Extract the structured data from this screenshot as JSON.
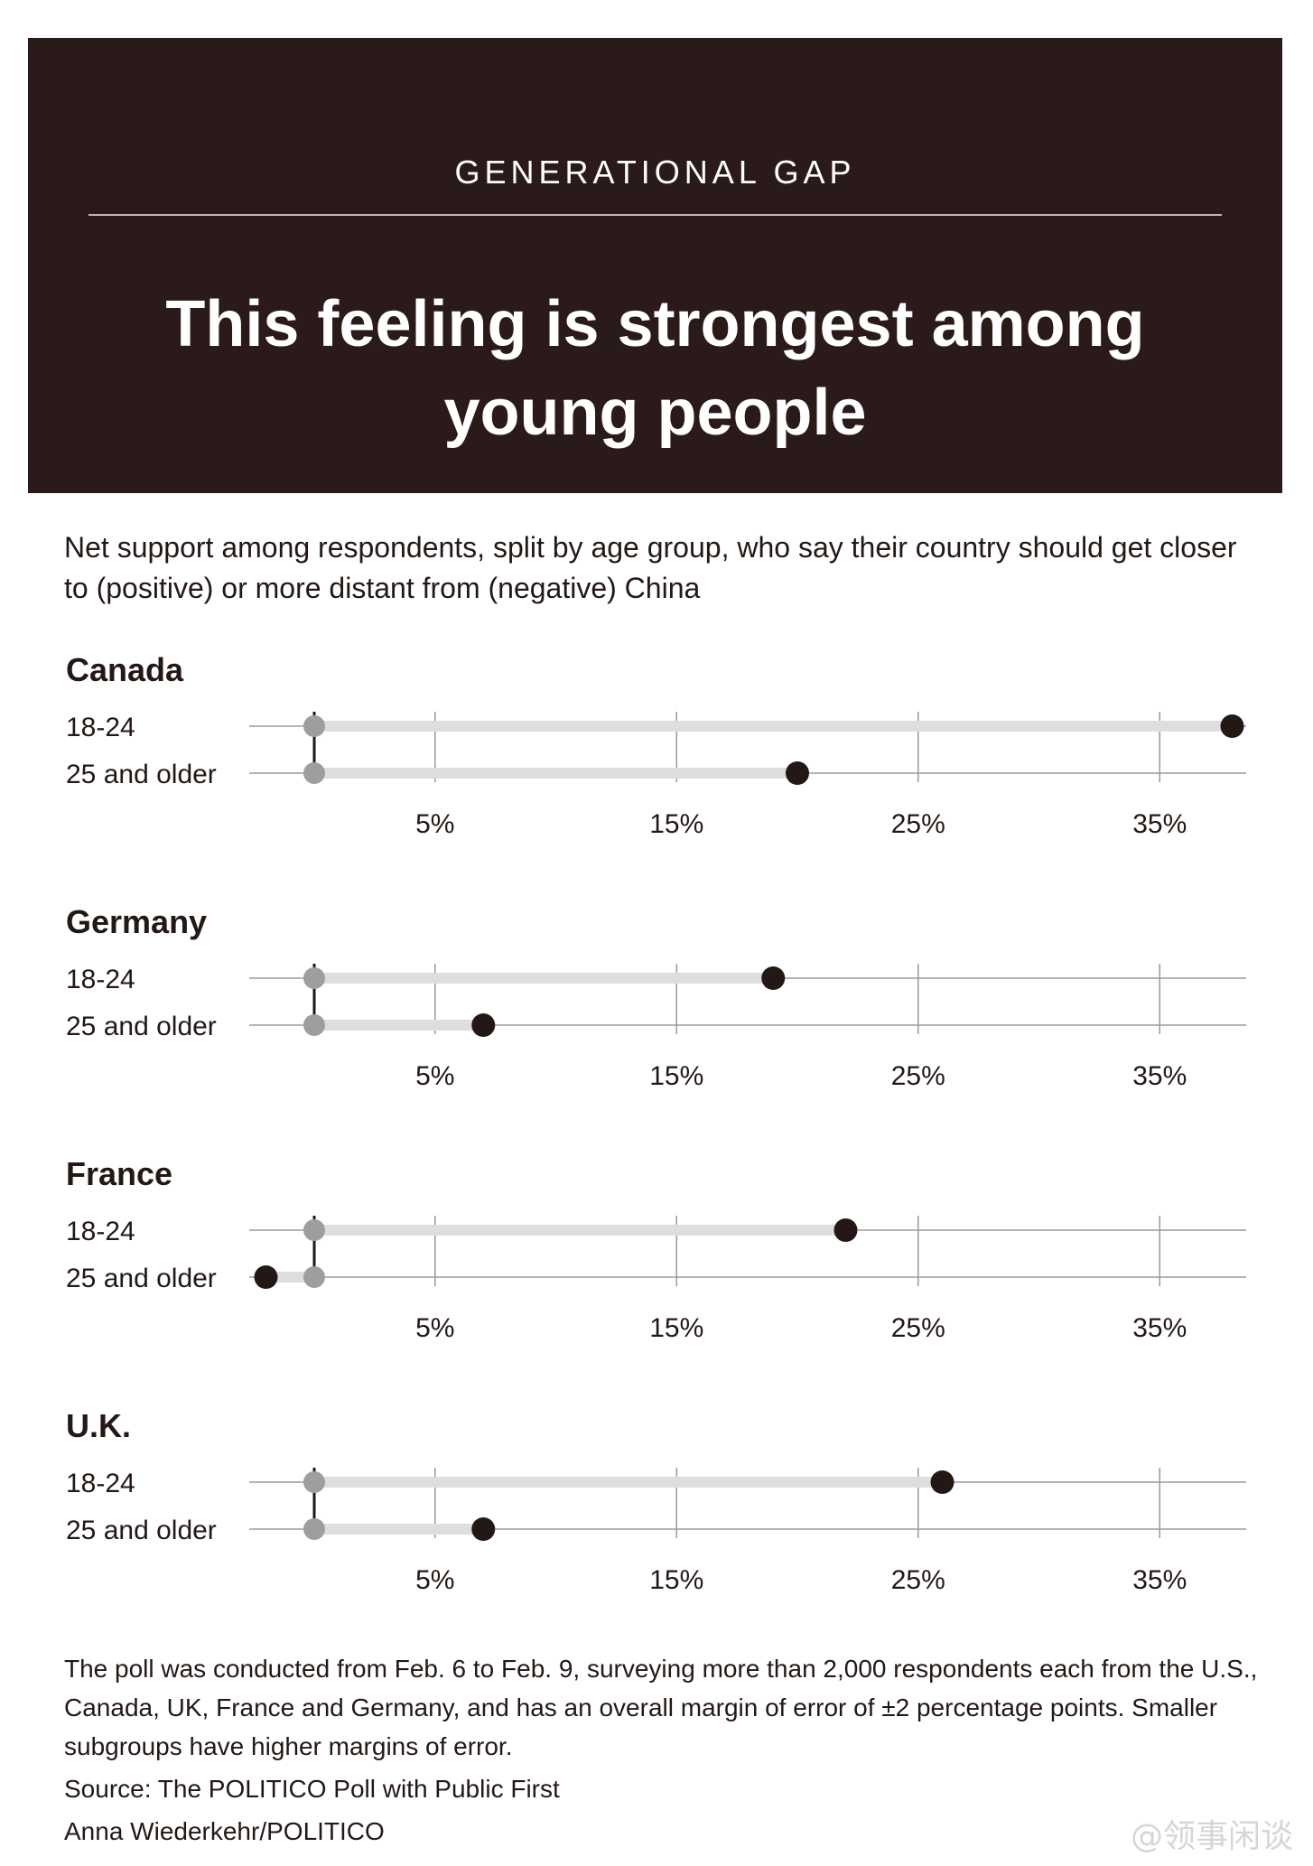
{
  "header": {
    "kicker": "GENERATIONAL GAP",
    "title": "This feeling is strongest among young people"
  },
  "subtitle": "Net support among respondents, split by age group, who say their country should get closer to (positive) or more distant from (negative) China",
  "chart_data": {
    "type": "dumbbell",
    "baseline": 0,
    "xlim": [
      -2.7,
      38.6
    ],
    "ticks": [
      5,
      15,
      25,
      35
    ],
    "tick_labels": [
      "5%",
      "15%",
      "25%",
      "35%"
    ],
    "colors": {
      "value": "#231815",
      "baseline": "#9e9e9e",
      "bar": "#dedede",
      "grid": "#9a9a9a"
    },
    "panels": [
      {
        "title": "Canada",
        "rows": [
          {
            "label": "18-24",
            "value": 38
          },
          {
            "label": "25 and older",
            "value": 20
          }
        ]
      },
      {
        "title": "Germany",
        "rows": [
          {
            "label": "18-24",
            "value": 19
          },
          {
            "label": "25 and older",
            "value": 7
          }
        ]
      },
      {
        "title": "France",
        "rows": [
          {
            "label": "18-24",
            "value": 22
          },
          {
            "label": "25 and older",
            "value": -2
          }
        ]
      },
      {
        "title": "U.K.",
        "rows": [
          {
            "label": "18-24",
            "value": 26
          },
          {
            "label": "25 and older",
            "value": 7
          }
        ]
      }
    ]
  },
  "notes": {
    "method": "The poll was conducted from Feb. 6 to Feb. 9, surveying more than 2,000 respondents each from the U.S., Canada, UK, France and Germany, and has an overall margin of error of ±2 percentage points. Smaller subgroups have higher margins of error.",
    "source": "Source: The POLITICO Poll with Public First",
    "credit": "Anna Wiederkehr/POLITICO"
  },
  "watermark": "@领事闲谈"
}
